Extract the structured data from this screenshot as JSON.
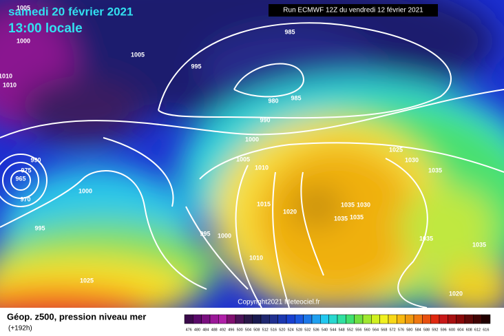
{
  "header": {
    "date": "samedi 20 février 2021",
    "time": "13:00 locale",
    "run": "Run ECMWF 12Z du vendredi 12 février 2021"
  },
  "copyright": "Copyright2021 Meteociel.fr",
  "footer": {
    "title": "Géop. z500, pression niveau mer",
    "lead": "(+192h)"
  },
  "isobar_labels": [
    "1005",
    "1000",
    "1010",
    "1010",
    "1005",
    "995",
    "985",
    "980",
    "985",
    "990",
    "1000",
    "1005",
    "1010",
    "1025",
    "1030",
    "1035",
    "990",
    "975",
    "965",
    "970",
    "1000",
    "995",
    "995",
    "1000",
    "1015",
    "1020",
    "1035",
    "1030",
    "1035",
    "1035",
    "1035",
    "1035",
    "1010",
    "1025",
    "1020"
  ],
  "scale": [
    "476",
    "480",
    "484",
    "488",
    "492",
    "496",
    "500",
    "504",
    "508",
    "512",
    "516",
    "520",
    "524",
    "528",
    "532",
    "536",
    "540",
    "544",
    "548",
    "552",
    "556",
    "560",
    "564",
    "568",
    "572",
    "576",
    "580",
    "584",
    "588",
    "592",
    "596",
    "600",
    "604",
    "608",
    "612",
    "616"
  ]
}
